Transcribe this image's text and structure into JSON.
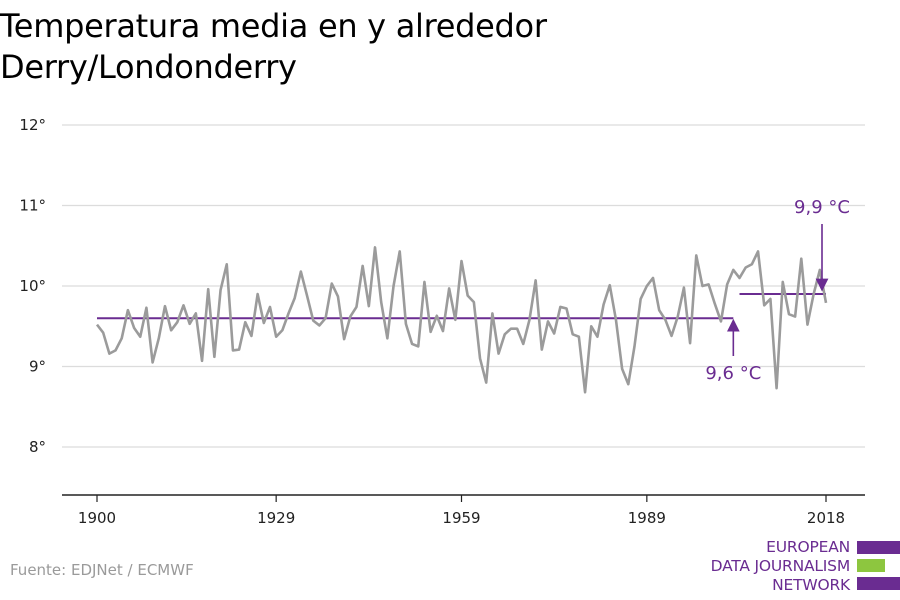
{
  "title_line1": "Temperatura media en y alrededor",
  "title_line2": "Derry/Londonderry",
  "source": "Fuente: EDJNet / ECMWF",
  "logo": {
    "line1": "EUROPEAN",
    "line2": "DATA JOURNALISM",
    "line3": "NETWORK",
    "color_primary": "#6a2c91",
    "color_accent": "#8dc63f"
  },
  "colors": {
    "series": "#9b9b9b",
    "average": "#6a2c91",
    "grid": "#dcdcdc",
    "axis": "#222222"
  },
  "chart_data": {
    "type": "line",
    "title": "Temperatura media en y alrededor Derry/Londonderry",
    "xlabel": "",
    "ylabel": "",
    "xlim": [
      1900,
      2018
    ],
    "ylim": [
      8,
      12
    ],
    "x_ticks": [
      1900,
      1929,
      1959,
      1989,
      2018
    ],
    "x_tick_labels": [
      "1900",
      "1929",
      "1959",
      "1989",
      "2018"
    ],
    "y_ticks": [
      8,
      9,
      10,
      11,
      12
    ],
    "y_tick_labels": [
      "8°",
      "9°",
      "10°",
      "11°",
      "12°"
    ],
    "grid": true,
    "series": [
      {
        "x": [
          1900,
          1901,
          1902,
          1903,
          1904,
          1905,
          1906,
          1907,
          1908,
          1909,
          1910,
          1911,
          1912,
          1913,
          1914,
          1915,
          1916,
          1917,
          1918,
          1919,
          1920,
          1921,
          1922,
          1923,
          1924,
          1925,
          1926,
          1927,
          1928,
          1929,
          1930,
          1931,
          1932,
          1933,
          1934,
          1935,
          1936,
          1937,
          1938,
          1939,
          1940,
          1941,
          1942,
          1943,
          1944,
          1945,
          1946,
          1947,
          1948,
          1949,
          1950,
          1951,
          1952,
          1953,
          1954,
          1955,
          1956,
          1957,
          1958,
          1959,
          1960,
          1961,
          1962,
          1963,
          1964,
          1965,
          1966,
          1967,
          1968,
          1969,
          1970,
          1971,
          1972,
          1973,
          1974,
          1975,
          1976,
          1977,
          1978,
          1979,
          1980,
          1981,
          1982,
          1983,
          1984,
          1985,
          1986,
          1987,
          1988,
          1989,
          1990,
          1991,
          1992,
          1993,
          1994,
          1995,
          1996,
          1997,
          1998,
          1999,
          2000,
          2001,
          2002,
          2003,
          2004,
          2005,
          2006,
          2007,
          2008,
          2009,
          2010,
          2011,
          2012,
          2013,
          2014,
          2015,
          2016,
          2017,
          2018
        ],
        "values": [
          9.52,
          9.42,
          9.16,
          9.2,
          9.35,
          9.7,
          9.48,
          9.37,
          9.73,
          9.05,
          9.35,
          9.75,
          9.45,
          9.55,
          9.76,
          9.53,
          9.66,
          9.07,
          9.96,
          9.12,
          9.95,
          10.27,
          9.2,
          9.21,
          9.55,
          9.38,
          9.9,
          9.54,
          9.74,
          9.37,
          9.45,
          9.66,
          9.85,
          10.18,
          9.88,
          9.57,
          9.51,
          9.6,
          10.03,
          9.87,
          9.34,
          9.62,
          9.74,
          10.25,
          9.75,
          10.48,
          9.8,
          9.35,
          10.0,
          10.43,
          9.53,
          9.28,
          9.25,
          10.05,
          9.43,
          9.63,
          9.44,
          9.97,
          9.58,
          10.31,
          9.88,
          9.8,
          9.1,
          8.8,
          9.66,
          9.16,
          9.4,
          9.47,
          9.47,
          9.28,
          9.58,
          10.07,
          9.21,
          9.56,
          9.41,
          9.74,
          9.72,
          9.4,
          9.37,
          8.68,
          9.5,
          9.37,
          9.77,
          10.01,
          9.58,
          8.97,
          8.78,
          9.25,
          9.84,
          10.0,
          10.1,
          9.7,
          9.58,
          9.38,
          9.62,
          9.98,
          9.29,
          10.38,
          10.0,
          10.02,
          9.78,
          9.56,
          10.02,
          10.2,
          10.1,
          10.23,
          10.27,
          10.43,
          9.76,
          9.84,
          8.73,
          10.05,
          9.65,
          9.62,
          10.34,
          9.52,
          9.9,
          10.2,
          9.79
        ]
      }
    ],
    "reference_lines": [
      {
        "x_start": 1900,
        "x_end": 2003,
        "value": 9.6,
        "label": "9,6 °C"
      },
      {
        "x_start": 2004,
        "x_end": 2018,
        "value": 9.9,
        "label": "9,9 °C"
      }
    ]
  }
}
